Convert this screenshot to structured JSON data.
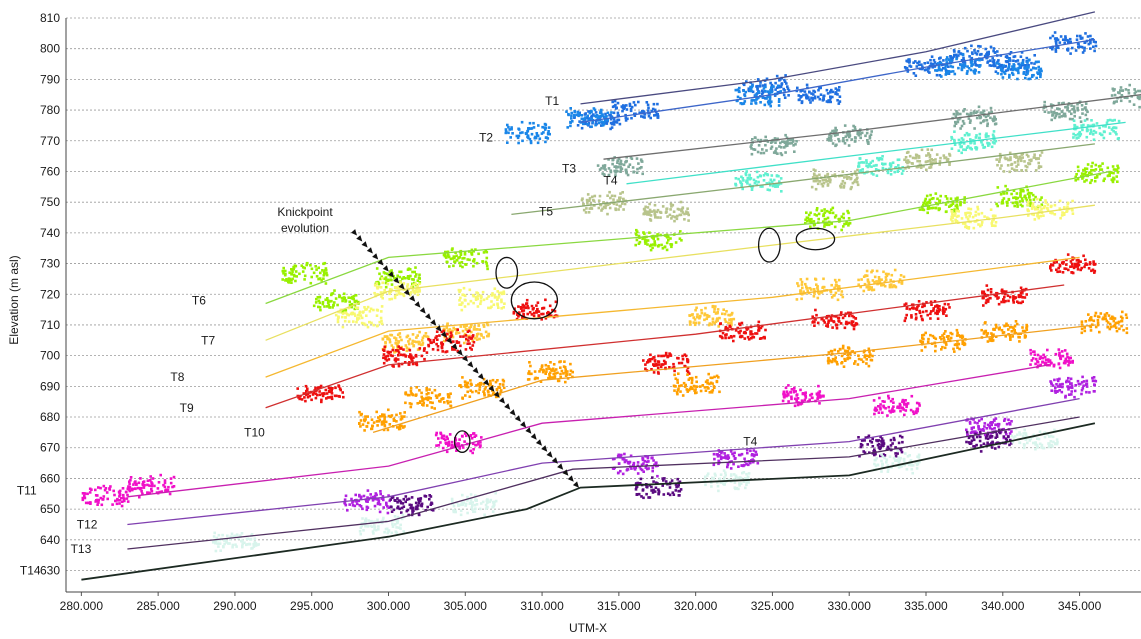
{
  "chart_data": {
    "type": "scatter",
    "title": "",
    "xlabel": "UTM-X",
    "ylabel": "Elevation (m asl)",
    "xlim": [
      279000,
      349000
    ],
    "ylim": [
      623,
      810
    ],
    "x_ticks": [
      280000,
      285000,
      290000,
      295000,
      300000,
      305000,
      310000,
      315000,
      320000,
      325000,
      330000,
      335000,
      340000,
      345000
    ],
    "x_tick_labels": [
      "280.000",
      "285.000",
      "290.000",
      "295.000",
      "300.000",
      "305.000",
      "310.000",
      "315.000",
      "320.000",
      "325.000",
      "330.000",
      "335.000",
      "340.000",
      "345.000"
    ],
    "y_ticks": [
      630,
      640,
      650,
      660,
      670,
      680,
      690,
      700,
      710,
      720,
      730,
      740,
      750,
      760,
      770,
      780,
      790,
      800,
      810
    ],
    "grid": true,
    "annotation": [
      "Knickpoint",
      "evolution"
    ],
    "knickpoint_arrow": {
      "from": [
        297800,
        740
      ],
      "to": [
        312400,
        657
      ]
    },
    "series": [
      {
        "label": "T1",
        "color": "#1f6fe0",
        "line_color": "#4a4a80",
        "profile": [
          [
            312500,
            782
          ],
          [
            325000,
            790
          ],
          [
            335000,
            799
          ],
          [
            346000,
            812
          ]
        ],
        "clusters": [
          [
            313500,
            777
          ],
          [
            316000,
            780
          ],
          [
            324500,
            788
          ],
          [
            328000,
            785
          ],
          [
            335000,
            795
          ],
          [
            338000,
            798
          ],
          [
            340500,
            796
          ],
          [
            344500,
            802
          ]
        ]
      },
      {
        "label": "T2",
        "color": "#1a86e8",
        "line_color": "#3d66c9",
        "profile": [
          [
            312500,
            776
          ],
          [
            325000,
            785
          ],
          [
            335000,
            794
          ],
          [
            346000,
            803
          ]
        ],
        "clusters": [
          [
            309000,
            773
          ],
          [
            313000,
            778
          ],
          [
            324000,
            785
          ],
          [
            337000,
            795
          ],
          [
            341000,
            794
          ]
        ]
      },
      {
        "label": "T3",
        "color": "#7fa89a",
        "line_color": "#6e6e6e",
        "profile": [
          [
            314000,
            764
          ],
          [
            330000,
            773
          ],
          [
            349000,
            785
          ]
        ],
        "clusters": [
          [
            315000,
            762
          ],
          [
            325000,
            769
          ],
          [
            330000,
            772
          ],
          [
            338000,
            778
          ],
          [
            344000,
            780
          ],
          [
            348500,
            785
          ]
        ]
      },
      {
        "label": "T4",
        "color": "#5ff0d0",
        "line_color": "#40e0c8",
        "profile": [
          [
            315500,
            756
          ],
          [
            330000,
            765
          ],
          [
            348000,
            776
          ]
        ],
        "clusters": [
          [
            324000,
            757
          ],
          [
            332000,
            762
          ],
          [
            338000,
            770
          ],
          [
            346000,
            774
          ]
        ]
      },
      {
        "label": "T5",
        "color": "#b8c48c",
        "line_color": "#8aa870",
        "profile": [
          [
            308000,
            746
          ],
          [
            325000,
            756
          ],
          [
            346000,
            769
          ]
        ],
        "clusters": [
          [
            314000,
            750
          ],
          [
            318000,
            747
          ],
          [
            329000,
            758
          ],
          [
            335000,
            764
          ],
          [
            341000,
            764
          ]
        ]
      },
      {
        "label": "T6",
        "color": "#98f000",
        "line_color": "#8ad840",
        "profile": [
          [
            292000,
            717
          ],
          [
            300000,
            732
          ],
          [
            330000,
            744
          ],
          [
            347000,
            760
          ]
        ],
        "clusters": [
          [
            294500,
            727
          ],
          [
            296500,
            718
          ],
          [
            300500,
            726
          ],
          [
            305000,
            732
          ],
          [
            317500,
            738
          ],
          [
            328500,
            745
          ],
          [
            336000,
            750
          ],
          [
            341000,
            752
          ],
          [
            346000,
            760
          ]
        ]
      },
      {
        "label": "T7",
        "color": "#f8f870",
        "line_color": "#e8e060",
        "profile": [
          [
            292000,
            705
          ],
          [
            300000,
            721
          ],
          [
            340000,
            745
          ],
          [
            346000,
            749
          ]
        ],
        "clusters": [
          [
            298000,
            713
          ],
          [
            300500,
            722
          ],
          [
            306000,
            719
          ],
          [
            338000,
            745
          ],
          [
            343000,
            748
          ]
        ]
      },
      {
        "label": "T8",
        "color": "#ffc838",
        "line_color": "#f5b830",
        "profile": [
          [
            292000,
            693
          ],
          [
            300000,
            708
          ],
          [
            325000,
            719
          ],
          [
            345000,
            732
          ]
        ],
        "clusters": [
          [
            301000,
            705
          ],
          [
            305000,
            708
          ],
          [
            321000,
            713
          ],
          [
            328000,
            722
          ],
          [
            332000,
            725
          ]
        ]
      },
      {
        "label": "T9",
        "color": "#ee1010",
        "line_color": "#d03030",
        "profile": [
          [
            292000,
            683
          ],
          [
            300000,
            697
          ],
          [
            320000,
            707
          ],
          [
            344000,
            723
          ]
        ],
        "clusters": [
          [
            295500,
            688
          ],
          [
            301000,
            700
          ],
          [
            304000,
            705
          ],
          [
            309500,
            715
          ],
          [
            318000,
            698
          ],
          [
            323000,
            708
          ],
          [
            329000,
            712
          ],
          [
            335000,
            715
          ],
          [
            340000,
            720
          ],
          [
            344500,
            730
          ]
        ]
      },
      {
        "label": "T10",
        "color": "#ffa000",
        "line_color": "#f0a020",
        "profile": [
          [
            299000,
            675
          ],
          [
            310000,
            692
          ],
          [
            330000,
            701
          ],
          [
            346000,
            710
          ]
        ],
        "clusters": [
          [
            299500,
            679
          ],
          [
            302500,
            687
          ],
          [
            306000,
            690
          ],
          [
            310500,
            695
          ],
          [
            320000,
            691
          ],
          [
            330000,
            700
          ],
          [
            336000,
            705
          ],
          [
            340000,
            708
          ],
          [
            346500,
            711
          ]
        ]
      },
      {
        "label": "T11",
        "color": "#f010c8",
        "line_color": "#c820b0",
        "profile": [
          [
            283000,
            654
          ],
          [
            300000,
            664
          ],
          [
            310000,
            678
          ],
          [
            330000,
            686
          ],
          [
            343000,
            697
          ]
        ],
        "clusters": [
          [
            281500,
            655
          ],
          [
            284500,
            658
          ],
          [
            304500,
            672
          ],
          [
            327000,
            687
          ],
          [
            333000,
            684
          ],
          [
            343000,
            699
          ]
        ]
      },
      {
        "label": "T12",
        "color": "#b020e0",
        "line_color": "#8040b0",
        "profile": [
          [
            283000,
            645
          ],
          [
            300000,
            654
          ],
          [
            310000,
            665
          ],
          [
            330000,
            672
          ],
          [
            345000,
            686
          ]
        ],
        "clusters": [
          [
            298500,
            653
          ],
          [
            316000,
            665
          ],
          [
            322500,
            667
          ],
          [
            339000,
            677
          ],
          [
            344500,
            690
          ]
        ]
      },
      {
        "label": "T13",
        "color": "#5a0a80",
        "line_color": "#503060",
        "profile": [
          [
            283000,
            637
          ],
          [
            300000,
            646
          ],
          [
            312000,
            663
          ],
          [
            330000,
            667
          ],
          [
            345000,
            680
          ]
        ],
        "clusters": [
          [
            301500,
            652
          ],
          [
            317500,
            657
          ],
          [
            332000,
            671
          ],
          [
            339000,
            673
          ]
        ]
      },
      {
        "label": "T14",
        "color": "#d8f4ec",
        "line_color": "#1c2a22",
        "profile": [
          [
            280000,
            627
          ],
          [
            300000,
            641
          ],
          [
            309000,
            650
          ],
          [
            312500,
            657
          ],
          [
            330000,
            661
          ],
          [
            346000,
            678
          ]
        ],
        "clusters": [
          [
            290000,
            640
          ],
          [
            299500,
            645
          ],
          [
            305500,
            652
          ],
          [
            322000,
            660
          ],
          [
            333000,
            666
          ],
          [
            342000,
            673
          ]
        ]
      }
    ],
    "label_positions": [
      {
        "label": "T1",
        "x": 310200,
        "y": 783
      },
      {
        "label": "T2",
        "x": 305900,
        "y": 771
      },
      {
        "label": "T3",
        "x": 311300,
        "y": 761
      },
      {
        "label": "T4",
        "x": 314000,
        "y": 757
      },
      {
        "label": "T5",
        "x": 309800,
        "y": 747
      },
      {
        "label": "T6",
        "x": 287200,
        "y": 718
      },
      {
        "label": "T7",
        "x": 287800,
        "y": 705
      },
      {
        "label": "T8",
        "x": 285800,
        "y": 693
      },
      {
        "label": "T9",
        "x": 286400,
        "y": 683
      },
      {
        "label": "T10",
        "x": 290600,
        "y": 675
      },
      {
        "label": "T4",
        "x": 323100,
        "y": 672
      },
      {
        "label": "T11",
        "x": 275800,
        "y": 656
      },
      {
        "label": "T12",
        "x": 279700,
        "y": 645
      },
      {
        "label": "T13",
        "x": 279300,
        "y": 637
      },
      {
        "label": "T14",
        "x": 276000,
        "y": 630
      }
    ],
    "ellipses": [
      {
        "x": 307700,
        "y": 727,
        "rx": 700,
        "ry": 5
      },
      {
        "x": 309500,
        "y": 718,
        "rx": 1500,
        "ry": 6
      },
      {
        "x": 304800,
        "y": 672,
        "rx": 500,
        "ry": 3.5
      },
      {
        "x": 324800,
        "y": 736,
        "rx": 700,
        "ry": 5.5
      },
      {
        "x": 327800,
        "y": 738,
        "rx": 1250,
        "ry": 3.5
      }
    ]
  }
}
